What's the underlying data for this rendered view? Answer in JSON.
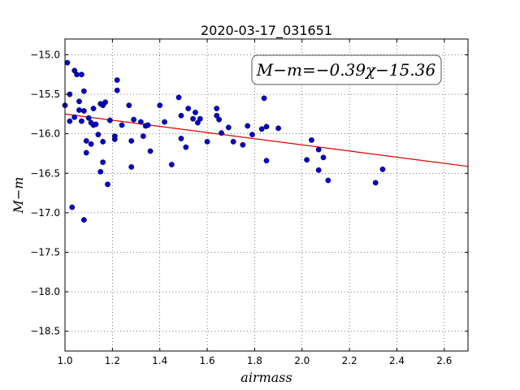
{
  "chart_data": {
    "type": "scatter",
    "title": "2020-03-17_031651",
    "xlabel": "airmass",
    "ylabel": "M−m",
    "xlim": [
      1.0,
      2.7
    ],
    "ylim": [
      -18.75,
      -14.8
    ],
    "x_ticks": [
      1.0,
      1.2,
      1.4,
      1.6,
      1.8,
      2.0,
      2.2,
      2.4,
      2.6
    ],
    "x_tick_labels": [
      "1.0",
      "1.2",
      "1.4",
      "1.6",
      "1.8",
      "2.0",
      "2.2",
      "2.4",
      "2.6"
    ],
    "y_ticks": [
      -15.0,
      -15.5,
      -16.0,
      -16.5,
      -17.0,
      -17.5,
      -18.0,
      -18.5
    ],
    "y_tick_labels": [
      "−15.0",
      "−15.5",
      "−16.0",
      "−16.5",
      "−17.0",
      "−17.5",
      "−18.0",
      "−18.5"
    ],
    "grid": true,
    "annotation": "M−m=−0.39χ−15.36",
    "fit": {
      "slope": -0.39,
      "intercept": -15.36
    },
    "colors": {
      "points": "#0000cc",
      "fit_line": "#e00000"
    },
    "series": [
      {
        "points": [
          [
            1.0,
            -15.64
          ],
          [
            1.01,
            -15.1
          ],
          [
            1.02,
            -15.5
          ],
          [
            1.02,
            -15.84
          ],
          [
            1.03,
            -16.93
          ],
          [
            1.04,
            -15.79
          ],
          [
            1.04,
            -15.2
          ],
          [
            1.05,
            -15.25
          ],
          [
            1.06,
            -15.59
          ],
          [
            1.06,
            -15.7
          ],
          [
            1.07,
            -15.84
          ],
          [
            1.07,
            -15.25
          ],
          [
            1.08,
            -15.46
          ],
          [
            1.08,
            -15.71
          ],
          [
            1.08,
            -17.09
          ],
          [
            1.09,
            -16.09
          ],
          [
            1.09,
            -16.24
          ],
          [
            1.1,
            -15.8
          ],
          [
            1.11,
            -16.13
          ],
          [
            1.11,
            -15.86
          ],
          [
            1.12,
            -15.68
          ],
          [
            1.12,
            -15.89
          ],
          [
            1.13,
            -15.88
          ],
          [
            1.14,
            -16.01
          ],
          [
            1.15,
            -16.48
          ],
          [
            1.15,
            -15.62
          ],
          [
            1.16,
            -15.64
          ],
          [
            1.16,
            -16.1
          ],
          [
            1.16,
            -16.36
          ],
          [
            1.17,
            -15.6
          ],
          [
            1.18,
            -16.64
          ],
          [
            1.19,
            -15.83
          ],
          [
            1.21,
            -16.07
          ],
          [
            1.21,
            -16.03
          ],
          [
            1.22,
            -15.32
          ],
          [
            1.22,
            -15.45
          ],
          [
            1.24,
            -15.89
          ],
          [
            1.27,
            -15.64
          ],
          [
            1.28,
            -16.09
          ],
          [
            1.28,
            -16.42
          ],
          [
            1.29,
            -15.82
          ],
          [
            1.32,
            -15.85
          ],
          [
            1.33,
            -16.03
          ],
          [
            1.34,
            -15.9
          ],
          [
            1.35,
            -15.89
          ],
          [
            1.36,
            -16.22
          ],
          [
            1.4,
            -15.64
          ],
          [
            1.42,
            -15.85
          ],
          [
            1.45,
            -16.39
          ],
          [
            1.48,
            -15.54
          ],
          [
            1.49,
            -15.77
          ],
          [
            1.49,
            -16.06
          ],
          [
            1.51,
            -16.17
          ],
          [
            1.52,
            -15.68
          ],
          [
            1.54,
            -15.81
          ],
          [
            1.55,
            -15.73
          ],
          [
            1.56,
            -15.86
          ],
          [
            1.57,
            -15.81
          ],
          [
            1.6,
            -16.1
          ],
          [
            1.64,
            -15.77
          ],
          [
            1.64,
            -15.68
          ],
          [
            1.65,
            -15.82
          ],
          [
            1.66,
            -15.99
          ],
          [
            1.69,
            -15.92
          ],
          [
            1.71,
            -16.1
          ],
          [
            1.75,
            -16.14
          ],
          [
            1.77,
            -15.9
          ],
          [
            1.79,
            -16.01
          ],
          [
            1.83,
            -15.94
          ],
          [
            1.84,
            -15.55
          ],
          [
            1.85,
            -15.91
          ],
          [
            1.85,
            -16.34
          ],
          [
            1.9,
            -15.93
          ],
          [
            2.02,
            -16.33
          ],
          [
            2.04,
            -16.08
          ],
          [
            2.07,
            -16.2
          ],
          [
            2.07,
            -16.46
          ],
          [
            2.09,
            -16.3
          ],
          [
            2.11,
            -16.59
          ],
          [
            2.31,
            -16.62
          ],
          [
            2.34,
            -16.45
          ]
        ]
      }
    ]
  }
}
